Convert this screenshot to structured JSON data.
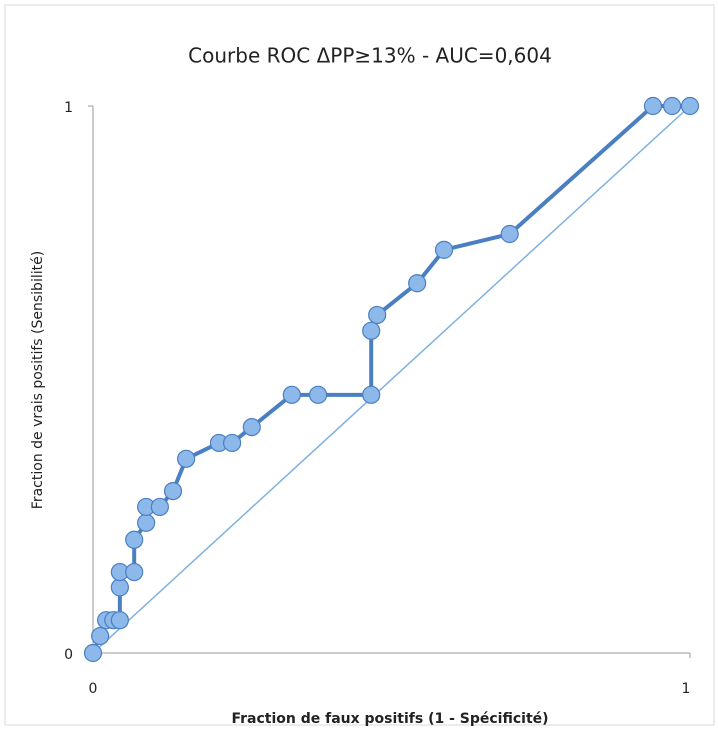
{
  "chart_data": {
    "type": "line",
    "title": "Courbe ROC ΔPP≥13% - AUC=0,604",
    "x_label": "Fraction de faux positifs (1 - Spécificité)",
    "y_label": "Fraction de vrais positifs (Sensibilité)",
    "xlim": [
      0,
      1
    ],
    "ylim": [
      0,
      1
    ],
    "xticks": [
      0,
      1
    ],
    "yticks": [
      0,
      1
    ],
    "series": [
      {
        "color": "#4a7fc1",
        "markers": true,
        "x": [
          0,
          0.012,
          0.022,
          0.034,
          0.045,
          0.045,
          0.045,
          0.069,
          0.069,
          0.089,
          0.089,
          0.112,
          0.134,
          0.156,
          0.211,
          0.233,
          0.266,
          0.333,
          0.377,
          0.466,
          0.466,
          0.476,
          0.543,
          0.588,
          0.698,
          0.938,
          0.97,
          1
        ],
        "values": [
          0,
          0.031,
          0.06,
          0.06,
          0.06,
          0.12,
          0.148,
          0.148,
          0.207,
          0.238,
          0.267,
          0.267,
          0.296,
          0.355,
          0.384,
          0.384,
          0.413,
          0.472,
          0.472,
          0.472,
          0.589,
          0.618,
          0.676,
          0.737,
          0.766,
          1,
          1,
          1
        ]
      },
      {
        "color": "#7fb0e0",
        "markers": false,
        "x": [
          0,
          1
        ],
        "values": [
          0,
          1
        ]
      }
    ]
  }
}
